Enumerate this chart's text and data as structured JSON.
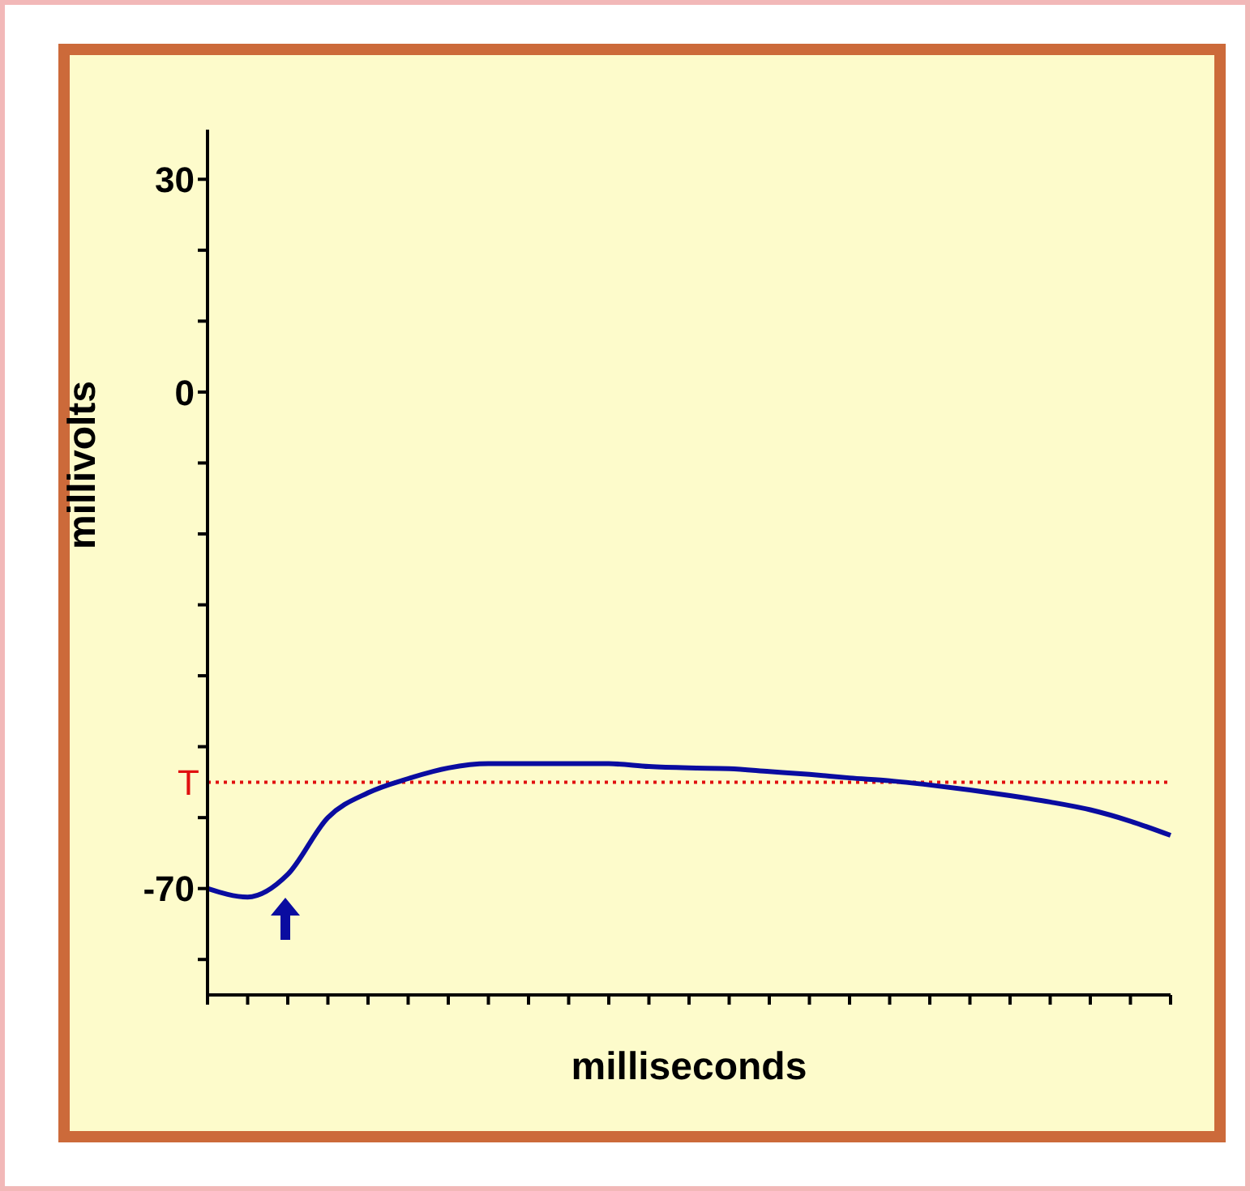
{
  "chart_data": {
    "type": "line",
    "xlabel": "milliseconds",
    "ylabel": "millivolts",
    "categories": [
      null,
      null,
      null,
      null,
      null,
      null,
      null,
      null,
      null,
      null,
      null,
      null,
      null,
      null,
      null,
      null,
      null,
      null,
      null,
      null,
      null,
      null,
      null,
      null,
      null
    ],
    "series": [
      {
        "color": "#0a0ca0",
        "values": [
          -70,
          -71.2,
          -68,
          -60,
          -56.5,
          -54.5,
          -53,
          -52.4,
          -52.4,
          -52.4,
          -52.4,
          -52.8,
          -53,
          -53.1,
          -53.5,
          -53.9,
          -54.4,
          -54.8,
          -55.4,
          -56.1,
          -56.9,
          -57.8,
          -58.9,
          -60.5,
          -62.5
        ]
      }
    ],
    "ylim": [
      -85,
      37
    ],
    "yticks": [
      {
        "value": -80,
        "label": null
      },
      -70,
      {
        "value": -60,
        "label": null
      },
      {
        "value": -50,
        "label": null
      },
      {
        "value": -40,
        "label": null
      },
      {
        "value": -30,
        "label": null
      },
      {
        "value": -20,
        "label": null
      },
      {
        "value": -10,
        "label": null
      },
      0,
      {
        "value": 10,
        "label": null
      },
      {
        "value": 20,
        "label": null
      },
      30
    ],
    "ref_lines": [
      {
        "axis": "y",
        "value": -55,
        "label": "T",
        "color": "#e01010",
        "line_style": "dotted"
      }
    ],
    "grid": false,
    "legend": false,
    "marker": "none",
    "line_style": "solid"
  }
}
